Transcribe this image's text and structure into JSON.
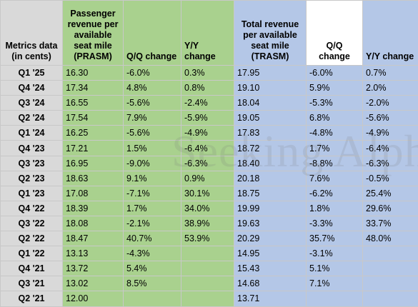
{
  "headers": [
    "Metrics data (in cents)",
    "Passenger revenue per available seat mile (PRASM)",
    "Q/Q change",
    "Y/Y change",
    "Total revenue per available seat mile (TRASM)",
    "Q/Q change",
    "Y/Y change"
  ],
  "rows": [
    [
      "Q1 '25",
      "16.30",
      "-6.0%",
      "0.3%",
      "17.95",
      "-6.0%",
      "0.7%"
    ],
    [
      "Q4 '24",
      "17.34",
      "4.8%",
      "0.8%",
      "19.10",
      "5.9%",
      "2.0%"
    ],
    [
      "Q3 '24",
      "16.55",
      "-5.6%",
      "-2.4%",
      "18.04",
      "-5.3%",
      "-2.0%"
    ],
    [
      "Q2 '24",
      "17.54",
      "7.9%",
      "-5.9%",
      "19.05",
      "6.8%",
      "-5.6%"
    ],
    [
      "Q1 '24",
      "16.25",
      "-5.6%",
      "-4.9%",
      "17.83",
      "-4.8%",
      "-4.9%"
    ],
    [
      "Q4 '23",
      "17.21",
      "1.5%",
      "-6.4%",
      "18.72",
      "1.7%",
      "-6.4%"
    ],
    [
      "Q3 '23",
      "16.95",
      "-9.0%",
      "-6.3%",
      "18.40",
      "-8.8%",
      "-6.3%"
    ],
    [
      "Q2 '23",
      "18.63",
      "9.1%",
      "0.9%",
      "20.18",
      "7.6%",
      "-0.5%"
    ],
    [
      "Q1 '23",
      "17.08",
      "-7.1%",
      "30.1%",
      "18.75",
      "-6.2%",
      "25.4%"
    ],
    [
      "Q4 '22",
      "18.39",
      "1.7%",
      "34.0%",
      "19.99",
      "1.8%",
      "29.6%"
    ],
    [
      "Q3 '22",
      "18.08",
      "-2.1%",
      "38.9%",
      "19.63",
      "-3.3%",
      "33.7%"
    ],
    [
      "Q2 '22",
      "18.47",
      "40.7%",
      "53.9%",
      "20.29",
      "35.7%",
      "48.0%"
    ],
    [
      "Q1 '22",
      "13.13",
      "-4.3%",
      "",
      "14.95",
      "-3.1%",
      ""
    ],
    [
      "Q4 '21",
      "13.72",
      "5.4%",
      "",
      "15.43",
      "5.1%",
      ""
    ],
    [
      "Q3 '21",
      "13.02",
      "8.5%",
      "",
      "14.68",
      "7.1%",
      ""
    ],
    [
      "Q2 '21",
      "12.00",
      "",
      "",
      "13.71",
      "",
      ""
    ]
  ],
  "watermark": "Seeking Alpha",
  "colors": {
    "metric_column": "#d9d9d9",
    "prasm_columns": "#a9d18e",
    "trasm_columns": "#b4c7e7",
    "border": "#c8c8c8"
  }
}
